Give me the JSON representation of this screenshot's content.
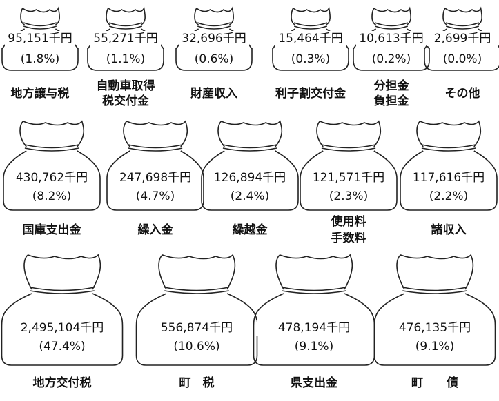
{
  "rows": [
    {
      "items": [
        {
          "amount": "95,151千円",
          "percent": "(1.8%)",
          "label": [
            "地方譲与税"
          ]
        },
        {
          "amount": "55,271千円",
          "percent": "(1.1%)",
          "label": [
            "自動車取得",
            "税交付金"
          ]
        },
        {
          "amount": "32,696千円",
          "percent": "(0.6%)",
          "label": [
            "財産収入"
          ]
        },
        {
          "amount": "15,464千円",
          "percent": "(0.3%)",
          "label": [
            "利子割交付金"
          ]
        },
        {
          "amount": "10,613千円",
          "percent": "(0.2%)",
          "label": [
            "分担金",
            "負担金"
          ]
        },
        {
          "amount": "2,699千円",
          "percent": "(0.0%)",
          "label": [
            "その他"
          ]
        }
      ]
    },
    {
      "items": [
        {
          "amount": "430,762千円",
          "percent": "(8.2%)",
          "label": [
            "国庫支出金"
          ]
        },
        {
          "amount": "247,698千円",
          "percent": "(4.7%)",
          "label": [
            "繰入金"
          ]
        },
        {
          "amount": "126,894千円",
          "percent": "(2.4%)",
          "label": [
            "繰越金"
          ]
        },
        {
          "amount": "121,571千円",
          "percent": "(2.3%)",
          "label": [
            "使用料",
            "手数料"
          ]
        },
        {
          "amount": "117,616千円",
          "percent": "(2.2%)",
          "label": [
            "諸収入"
          ]
        }
      ]
    },
    {
      "items": [
        {
          "amount": "2,495,104千円",
          "percent": "(47.4%)",
          "label": [
            "地方交付税"
          ]
        },
        {
          "amount": "556,874千円",
          "percent": "(10.6%)",
          "label": [
            "町　税"
          ]
        },
        {
          "amount": "478,194千円",
          "percent": "(9.1%)",
          "label": [
            "県支出金"
          ]
        },
        {
          "amount": "476,135千円",
          "percent": "(9.1%)",
          "label": [
            "町　　債"
          ]
        }
      ]
    }
  ]
}
